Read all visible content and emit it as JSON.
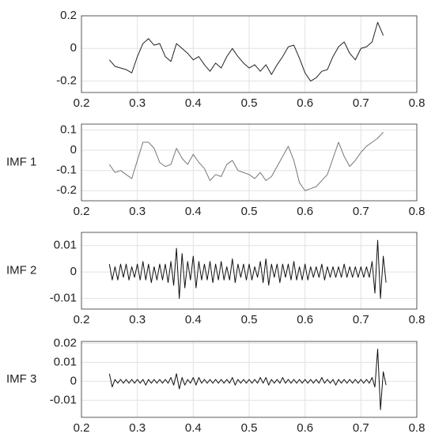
{
  "chart_data": [
    {
      "type": "line",
      "color": "#222222",
      "grid": true,
      "x": [
        0.25,
        0.26,
        0.27,
        0.28,
        0.29,
        0.3,
        0.31,
        0.32,
        0.33,
        0.34,
        0.35,
        0.36,
        0.37,
        0.38,
        0.39,
        0.4,
        0.41,
        0.42,
        0.43,
        0.44,
        0.45,
        0.46,
        0.47,
        0.48,
        0.49,
        0.5,
        0.51,
        0.52,
        0.53,
        0.54,
        0.55,
        0.56,
        0.57,
        0.58,
        0.59,
        0.6,
        0.61,
        0.62,
        0.63,
        0.64,
        0.65,
        0.66,
        0.67,
        0.68,
        0.69,
        0.7,
        0.71,
        0.72,
        0.73,
        0.74
      ],
      "values": [
        -0.07,
        -0.11,
        -0.12,
        -0.13,
        -0.15,
        -0.05,
        0.03,
        0.06,
        0.02,
        0.03,
        -0.05,
        -0.08,
        0.03,
        0.0,
        -0.03,
        -0.07,
        -0.05,
        -0.1,
        -0.14,
        -0.09,
        -0.12,
        -0.05,
        0.0,
        -0.05,
        -0.09,
        -0.12,
        -0.1,
        -0.14,
        -0.1,
        -0.16,
        -0.1,
        -0.05,
        0.01,
        0.02,
        -0.06,
        -0.15,
        -0.2,
        -0.18,
        -0.14,
        -0.13,
        -0.05,
        0.01,
        0.04,
        -0.03,
        -0.07,
        0.0,
        0.01,
        0.04,
        0.16,
        0.08
      ],
      "xlim": [
        0.2,
        0.8
      ],
      "xticks": [
        0.2,
        0.3,
        0.4,
        0.5,
        0.6,
        0.7,
        0.8
      ],
      "ylim": [
        -0.27,
        0.2
      ],
      "yticks": [
        -0.2,
        0,
        0.2
      ]
    },
    {
      "type": "line",
      "color": "#777777",
      "grid": true,
      "ylabel": "IMF 1",
      "x": [
        0.25,
        0.26,
        0.27,
        0.28,
        0.29,
        0.3,
        0.31,
        0.32,
        0.33,
        0.34,
        0.35,
        0.36,
        0.37,
        0.38,
        0.39,
        0.4,
        0.41,
        0.42,
        0.43,
        0.44,
        0.45,
        0.46,
        0.47,
        0.48,
        0.49,
        0.5,
        0.51,
        0.52,
        0.53,
        0.54,
        0.55,
        0.56,
        0.57,
        0.58,
        0.59,
        0.6,
        0.61,
        0.62,
        0.63,
        0.64,
        0.65,
        0.66,
        0.67,
        0.68,
        0.69,
        0.7,
        0.71,
        0.72,
        0.73,
        0.74
      ],
      "values": [
        -0.07,
        -0.11,
        -0.1,
        -0.12,
        -0.14,
        -0.05,
        0.04,
        0.04,
        0.01,
        -0.06,
        -0.08,
        -0.07,
        0.01,
        -0.04,
        -0.07,
        -0.02,
        -0.06,
        -0.09,
        -0.15,
        -0.12,
        -0.13,
        -0.07,
        -0.05,
        -0.1,
        -0.11,
        -0.12,
        -0.14,
        -0.11,
        -0.15,
        -0.13,
        -0.08,
        -0.03,
        0.02,
        -0.05,
        -0.16,
        -0.2,
        -0.19,
        -0.18,
        -0.15,
        -0.12,
        -0.04,
        0.04,
        -0.03,
        -0.08,
        -0.05,
        -0.01,
        0.02,
        0.04,
        0.06,
        0.09
      ],
      "xlim": [
        0.2,
        0.8
      ],
      "xticks": [
        0.2,
        0.3,
        0.4,
        0.5,
        0.6,
        0.7,
        0.8
      ],
      "ylim": [
        -0.25,
        0.13
      ],
      "yticks": [
        -0.2,
        -0.1,
        0,
        0.1
      ]
    },
    {
      "type": "line",
      "color": "#111111",
      "grid": true,
      "ylabel": "IMF 2",
      "x": [
        0.25,
        0.255,
        0.26,
        0.265,
        0.27,
        0.275,
        0.28,
        0.285,
        0.29,
        0.295,
        0.3,
        0.305,
        0.31,
        0.315,
        0.32,
        0.325,
        0.33,
        0.335,
        0.34,
        0.345,
        0.35,
        0.355,
        0.36,
        0.365,
        0.37,
        0.375,
        0.38,
        0.385,
        0.39,
        0.395,
        0.4,
        0.405,
        0.41,
        0.415,
        0.42,
        0.425,
        0.43,
        0.435,
        0.44,
        0.445,
        0.45,
        0.455,
        0.46,
        0.465,
        0.47,
        0.475,
        0.48,
        0.485,
        0.49,
        0.495,
        0.5,
        0.505,
        0.51,
        0.515,
        0.52,
        0.525,
        0.53,
        0.535,
        0.54,
        0.545,
        0.55,
        0.555,
        0.56,
        0.565,
        0.57,
        0.575,
        0.58,
        0.585,
        0.59,
        0.595,
        0.6,
        0.605,
        0.61,
        0.615,
        0.62,
        0.625,
        0.63,
        0.635,
        0.64,
        0.645,
        0.65,
        0.655,
        0.66,
        0.665,
        0.67,
        0.675,
        0.68,
        0.685,
        0.69,
        0.695,
        0.7,
        0.705,
        0.71,
        0.715,
        0.72,
        0.725,
        0.73,
        0.735,
        0.74,
        0.745
      ],
      "values": [
        0.003,
        -0.003,
        0.002,
        -0.003,
        0.003,
        -0.002,
        0.003,
        -0.003,
        0.002,
        -0.002,
        0.003,
        -0.003,
        0.004,
        -0.003,
        0.003,
        -0.004,
        0.002,
        -0.003,
        0.003,
        -0.003,
        0.003,
        -0.004,
        0.004,
        -0.005,
        0.009,
        -0.01,
        0.007,
        -0.006,
        0.004,
        -0.003,
        0.006,
        -0.006,
        0.004,
        -0.003,
        0.003,
        -0.003,
        0.004,
        -0.004,
        0.003,
        -0.003,
        0.004,
        -0.003,
        0.002,
        -0.003,
        0.005,
        -0.004,
        0.003,
        -0.002,
        0.003,
        -0.003,
        0.003,
        -0.003,
        0.002,
        -0.002,
        0.004,
        -0.004,
        0.005,
        -0.005,
        0.003,
        -0.002,
        0.003,
        -0.004,
        0.003,
        -0.002,
        0.003,
        -0.003,
        0.004,
        -0.003,
        0.002,
        -0.003,
        0.003,
        -0.003,
        0.002,
        -0.002,
        0.002,
        -0.002,
        0.003,
        -0.003,
        0.002,
        -0.002,
        0.002,
        -0.002,
        0.002,
        -0.002,
        0.003,
        -0.002,
        0.002,
        -0.002,
        0.002,
        -0.002,
        0.002,
        -0.002,
        0.002,
        -0.002,
        0.004,
        -0.008,
        0.012,
        -0.01,
        0.006,
        -0.004
      ],
      "xlim": [
        0.2,
        0.8
      ],
      "xticks": [
        0.2,
        0.3,
        0.4,
        0.5,
        0.6,
        0.7,
        0.8
      ],
      "ylim": [
        -0.014,
        0.015
      ],
      "yticks": [
        -0.01,
        0,
        0.01
      ]
    },
    {
      "type": "line",
      "color": "#111111",
      "grid": true,
      "ylabel": "IMF 3",
      "x": [
        0.25,
        0.255,
        0.26,
        0.265,
        0.27,
        0.275,
        0.28,
        0.285,
        0.29,
        0.295,
        0.3,
        0.305,
        0.31,
        0.315,
        0.32,
        0.325,
        0.33,
        0.335,
        0.34,
        0.345,
        0.35,
        0.355,
        0.36,
        0.365,
        0.37,
        0.375,
        0.38,
        0.385,
        0.39,
        0.395,
        0.4,
        0.405,
        0.41,
        0.415,
        0.42,
        0.425,
        0.43,
        0.435,
        0.44,
        0.445,
        0.45,
        0.455,
        0.46,
        0.465,
        0.47,
        0.475,
        0.48,
        0.485,
        0.49,
        0.495,
        0.5,
        0.505,
        0.51,
        0.515,
        0.52,
        0.525,
        0.53,
        0.535,
        0.54,
        0.545,
        0.55,
        0.555,
        0.56,
        0.565,
        0.57,
        0.575,
        0.58,
        0.585,
        0.59,
        0.595,
        0.6,
        0.605,
        0.61,
        0.615,
        0.62,
        0.625,
        0.63,
        0.635,
        0.64,
        0.645,
        0.65,
        0.655,
        0.66,
        0.665,
        0.67,
        0.675,
        0.68,
        0.685,
        0.69,
        0.695,
        0.7,
        0.705,
        0.71,
        0.715,
        0.72,
        0.725,
        0.73,
        0.735,
        0.74,
        0.745
      ],
      "values": [
        0.004,
        -0.003,
        0.001,
        -0.001,
        0.001,
        -0.001,
        0.001,
        -0.001,
        0.001,
        -0.001,
        0.001,
        -0.001,
        0.001,
        -0.002,
        0.001,
        -0.001,
        0.001,
        -0.001,
        0.001,
        -0.001,
        0.001,
        -0.001,
        0.002,
        -0.002,
        0.004,
        -0.004,
        0.002,
        -0.002,
        0.001,
        -0.001,
        0.002,
        -0.002,
        0.002,
        -0.001,
        0.001,
        -0.001,
        0.001,
        -0.001,
        0.001,
        -0.001,
        0.001,
        -0.001,
        0.001,
        -0.001,
        0.002,
        -0.002,
        0.001,
        -0.001,
        0.001,
        -0.001,
        0.001,
        -0.001,
        0.001,
        -0.001,
        0.002,
        -0.001,
        0.002,
        -0.002,
        0.001,
        -0.001,
        0.001,
        -0.001,
        0.002,
        -0.001,
        0.001,
        -0.001,
        0.001,
        -0.001,
        0.001,
        -0.001,
        0.001,
        -0.001,
        0.001,
        -0.001,
        0.001,
        -0.001,
        0.002,
        -0.001,
        0.001,
        -0.001,
        0.001,
        -0.002,
        0.001,
        -0.001,
        0.001,
        -0.001,
        0.001,
        -0.001,
        0.001,
        -0.001,
        0.001,
        -0.001,
        0.001,
        -0.001,
        0.002,
        -0.003,
        0.017,
        -0.015,
        0.005,
        -0.002
      ],
      "xlim": [
        0.2,
        0.8
      ],
      "xticks": [
        0.2,
        0.3,
        0.4,
        0.5,
        0.6,
        0.7,
        0.8
      ],
      "ylim": [
        -0.019,
        0.021
      ],
      "yticks": [
        -0.01,
        0,
        0.01,
        0.02
      ]
    }
  ]
}
